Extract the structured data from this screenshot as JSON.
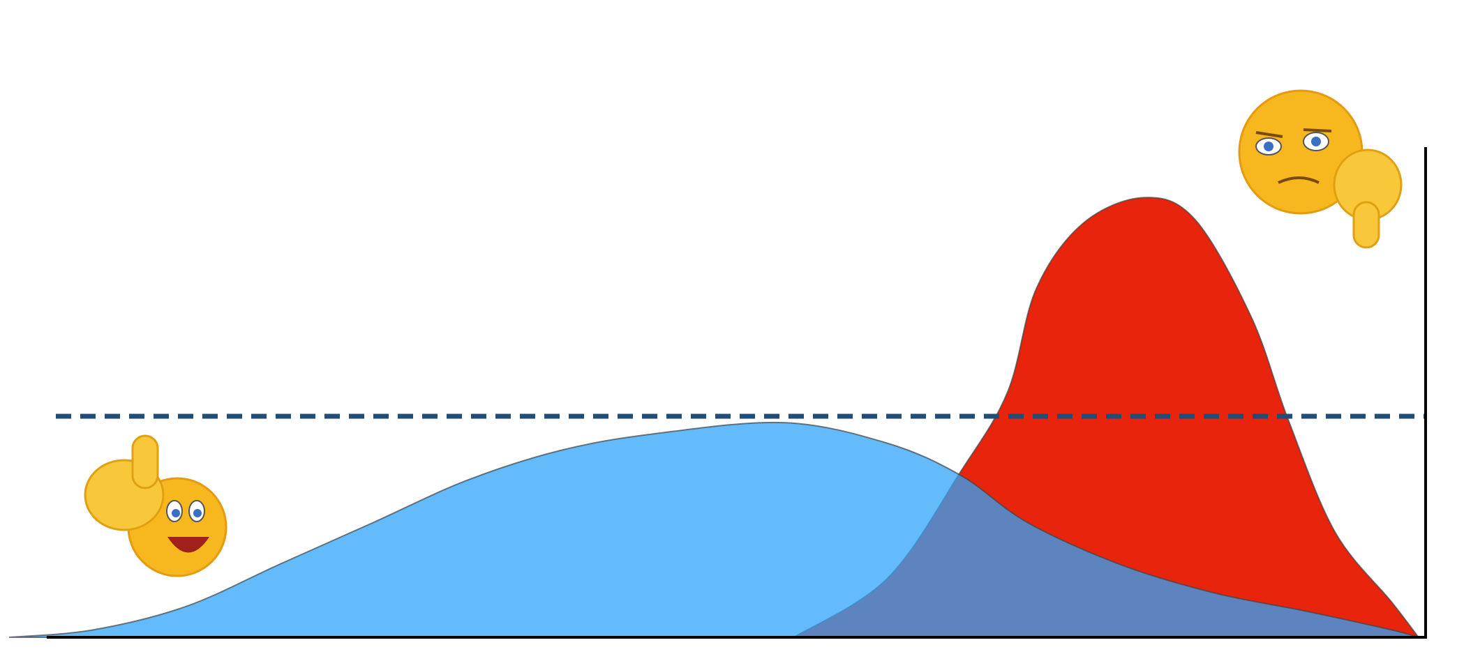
{
  "chart_data": {
    "type": "area",
    "xlim": [
      0,
      100
    ],
    "ylim": [
      0,
      100
    ],
    "threshold": 45.1,
    "threshold_color": "#1f4e79",
    "series": [
      {
        "color": "#e8240c",
        "x": [
          55.4,
          62,
          67.2,
          70.5,
          72.5,
          75.8,
          80.1,
          83.7,
          87.7,
          90.3,
          93.6,
          97.6,
          99.5
        ],
        "values": [
          0,
          12,
          33.9,
          50.1,
          71,
          84.4,
          89.7,
          85.3,
          65.3,
          44.4,
          21.5,
          7.2,
          0
        ]
      },
      {
        "color": "#2fa4f9",
        "x": [
          0,
          5.9,
          12.5,
          19.1,
          25.7,
          32.3,
          38.9,
          45.5,
          54.7,
          62,
          67.2,
          71.9,
          78.4,
          85,
          91.6,
          97.6,
          99.5
        ],
        "values": [
          0,
          1.5,
          6.3,
          14.9,
          23.4,
          32,
          38.1,
          41.5,
          43.8,
          39.6,
          33,
          23.4,
          14.9,
          9.1,
          5.3,
          1.5,
          0
        ]
      }
    ]
  }
}
